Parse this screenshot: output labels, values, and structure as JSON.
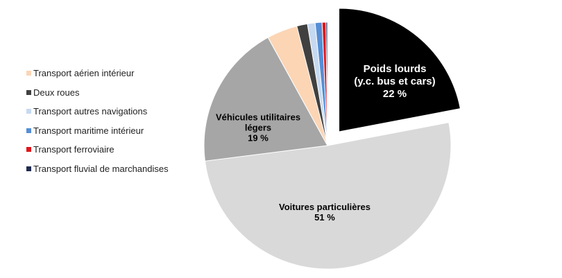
{
  "chart_data": {
    "type": "pie",
    "categories": [
      "Poids lourds\n(y.c. bus et cars)",
      "Voitures particulières",
      "Véhicules utilitaires\nlégers",
      "Transport aérien intérieur",
      "Deux roues",
      "Transport autres navigations",
      "Transport maritime intérieur",
      "Transport ferroviaire",
      "Transport fluvial de marchandises"
    ],
    "values": [
      22,
      51,
      19,
      4,
      1.4,
      1,
      0.9,
      0.5,
      0.2
    ],
    "value_labels": [
      "22 %",
      "51 %",
      "19 %",
      null,
      null,
      null,
      null,
      null,
      null
    ],
    "colors": [
      "#000000",
      "#d9d9d9",
      "#a6a6a6",
      "#fcd5b5",
      "#404040",
      "#c6d9f1",
      "#558ed5",
      "#e0151b",
      "#1f2a50"
    ],
    "exploded": [
      0
    ]
  }
}
